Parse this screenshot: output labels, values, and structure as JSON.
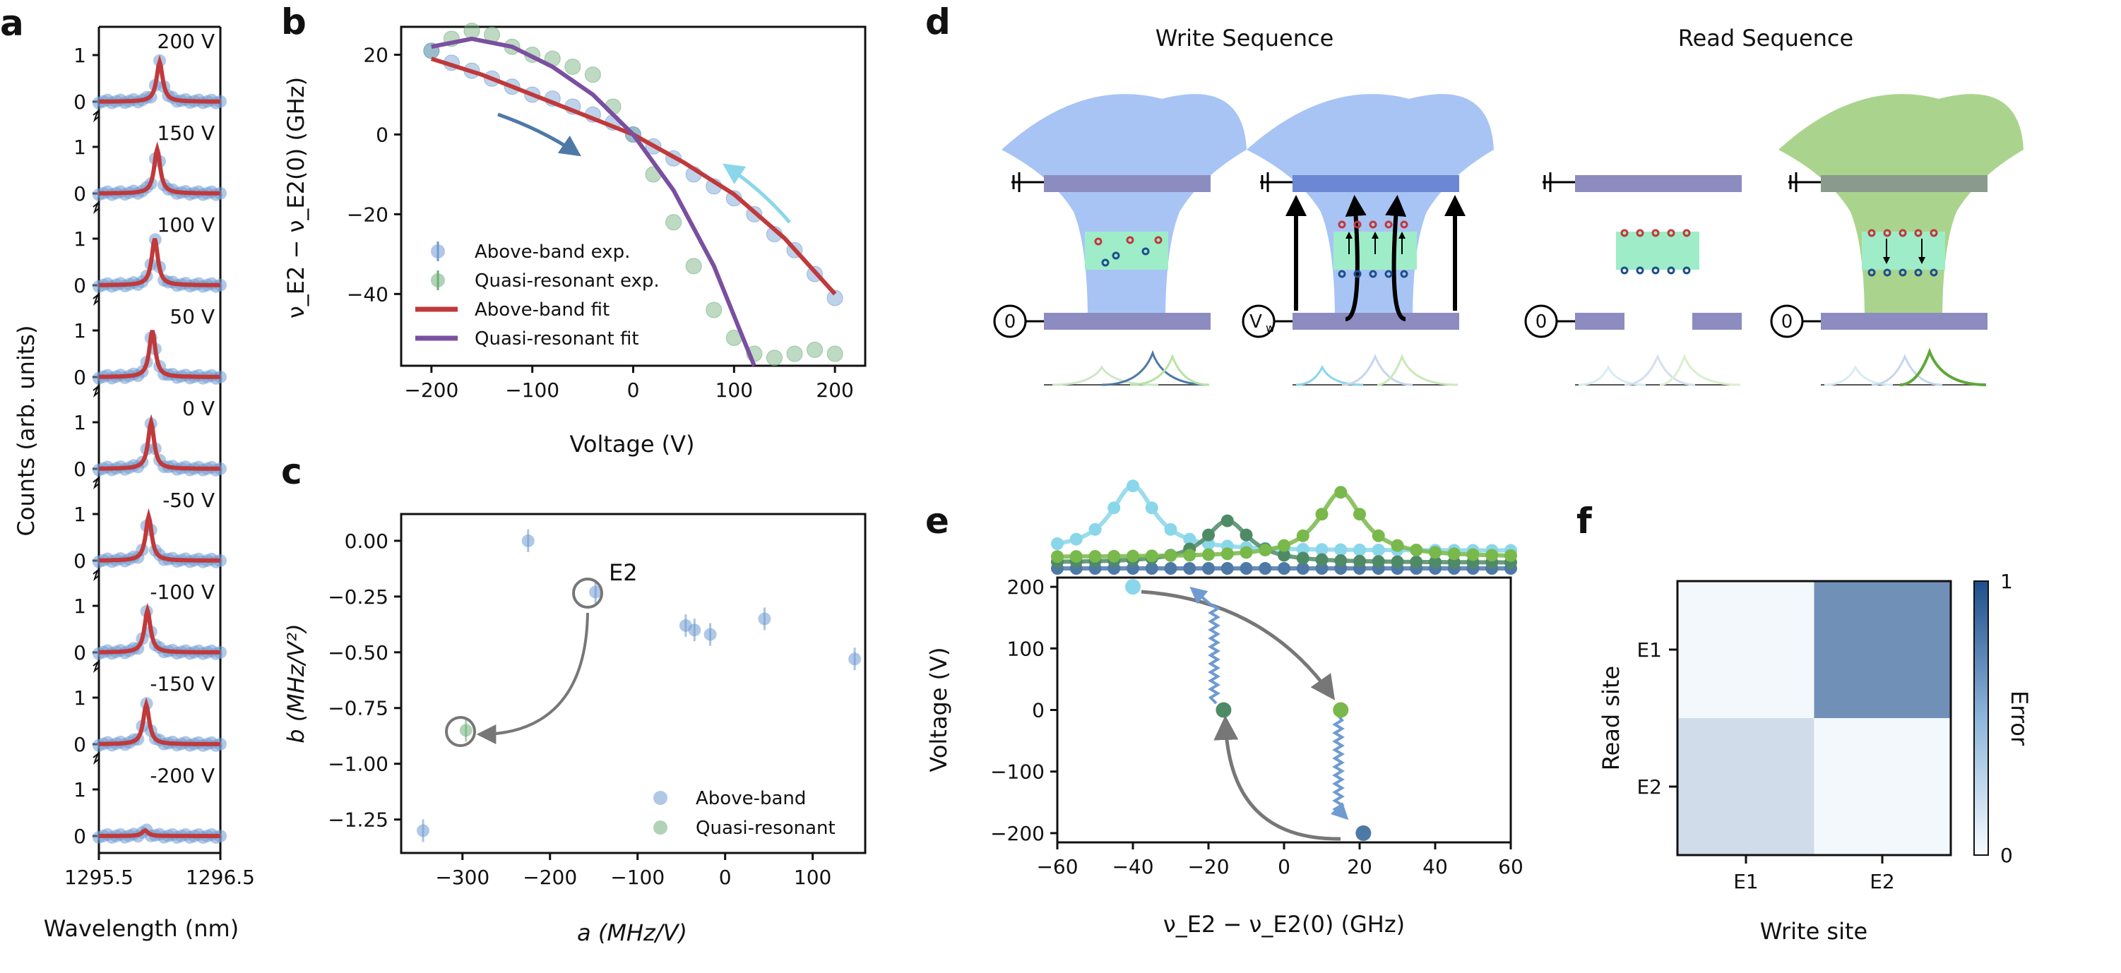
{
  "panel_labels": {
    "a": "a",
    "b": "b",
    "c": "c",
    "d": "d",
    "e": "e",
    "f": "f"
  },
  "colors": {
    "blue": "#6f9bd1",
    "red": "#c0393b",
    "green": "#6fae7a",
    "purple": "#7b4fa0",
    "cyan": "#8ad6ea",
    "teal": "#4f8a66",
    "lime": "#79b84a",
    "steel": "#4e79a7"
  },
  "chart_data": [
    {
      "panel": "a",
      "type": "line",
      "title": "",
      "xlabel": "Wavelength (nm)",
      "ylabel": "Counts (arb. units)",
      "xlim": [
        1295.5,
        1296.5
      ],
      "xticks": [
        "1295.5",
        "1296.5"
      ],
      "yticks": [
        "0",
        "1"
      ],
      "series": [
        {
          "name": "200 V",
          "center": 1296.0,
          "amplitude": 0.85
        },
        {
          "name": "150 V",
          "center": 1295.98,
          "amplitude": 0.95
        },
        {
          "name": "100 V",
          "center": 1295.96,
          "amplitude": 1.0
        },
        {
          "name": "50 V",
          "center": 1295.94,
          "amplitude": 1.0
        },
        {
          "name": "0 V",
          "center": 1295.93,
          "amplitude": 1.0
        },
        {
          "name": "-50 V",
          "center": 1295.91,
          "amplitude": 0.95
        },
        {
          "name": "-100 V",
          "center": 1295.9,
          "amplitude": 0.9
        },
        {
          "name": "-150 V",
          "center": 1295.89,
          "amplitude": 0.85
        },
        {
          "name": "-200 V",
          "center": 1295.88,
          "amplitude": 0.12
        }
      ]
    },
    {
      "panel": "b",
      "type": "scatter",
      "xlabel": "Voltage (V)",
      "ylabel": "ν_E2 − ν_E2(0) (GHz)",
      "xlim": [
        -230,
        230
      ],
      "ylim": [
        -58,
        27
      ],
      "xticks": [
        "−200",
        "−100",
        "0",
        "100",
        "200"
      ],
      "yticks": [
        "20",
        "0",
        "−20",
        "−40"
      ],
      "series": [
        {
          "name": "Above-band exp.",
          "x": [
            -200,
            -180,
            -160,
            -140,
            -120,
            -100,
            -80,
            -60,
            -40,
            -20,
            0,
            20,
            40,
            60,
            80,
            100,
            120,
            140,
            160,
            180,
            200
          ],
          "y": [
            21,
            18,
            16,
            14,
            12,
            10,
            9,
            7,
            5,
            3,
            0,
            -3,
            -6,
            -10,
            -13,
            -16,
            -20,
            -25,
            -29,
            -35,
            -41
          ]
        },
        {
          "name": "Quasi-resonant exp.",
          "x": [
            -200,
            -180,
            -160,
            -140,
            -120,
            -100,
            -80,
            -60,
            -40,
            -20,
            0,
            20,
            40,
            60,
            80,
            100,
            120,
            140,
            160,
            180,
            200
          ],
          "y": [
            21,
            24,
            26,
            25,
            22,
            20,
            19,
            17,
            15,
            7,
            0,
            -10,
            -22,
            -33,
            -44,
            -51,
            -55,
            -56,
            -55,
            -54,
            -55
          ]
        },
        {
          "name": "Above-band fit",
          "x": [
            -200,
            -150,
            -100,
            -50,
            0,
            50,
            100,
            150,
            200
          ],
          "y": [
            19,
            15,
            10,
            5,
            0,
            -7,
            -15,
            -26,
            -40
          ]
        },
        {
          "name": "Quasi-resonant fit",
          "x": [
            -200,
            -160,
            -120,
            -80,
            -40,
            0,
            40,
            80,
            120
          ],
          "y": [
            22,
            24,
            22,
            17,
            10,
            0,
            -14,
            -33,
            -58
          ]
        }
      ]
    },
    {
      "panel": "c",
      "type": "scatter",
      "xlabel": "a (MHz/V)",
      "ylabel": "b (MHz/V²)",
      "xlim": [
        -370,
        160
      ],
      "ylim": [
        -1.4,
        0.12
      ],
      "xticks": [
        "−300",
        "−200",
        "−100",
        "0",
        "100"
      ],
      "yticks": [
        "0.00",
        "−0.25",
        "−0.50",
        "−0.75",
        "−1.00",
        "−1.25"
      ],
      "annotation": "E2",
      "series": [
        {
          "name": "Above-band",
          "x": [
            -225,
            -148,
            -45,
            -35,
            -17,
            45,
            148,
            -345
          ],
          "y": [
            0.0,
            -0.23,
            -0.38,
            -0.4,
            -0.42,
            -0.35,
            -0.53,
            -1.3
          ]
        },
        {
          "name": "Quasi-resonant",
          "x": [
            -296
          ],
          "y": [
            -0.85
          ]
        }
      ]
    },
    {
      "panel": "e",
      "type": "scatter",
      "xlabel": "ν_E2 − ν_E2(0) (GHz)",
      "ylabel": "Voltage (V)",
      "xlim": [
        -60,
        60
      ],
      "ylim": [
        -215,
        215
      ],
      "xticks": [
        "−60",
        "−40",
        "−20",
        "0",
        "20",
        "40",
        "60"
      ],
      "yticks": [
        "200",
        "100",
        "0",
        "−100",
        "−200"
      ],
      "points": [
        {
          "name": "p-light-blue",
          "x": -40,
          "y": 200
        },
        {
          "name": "p-dark-green",
          "x": -16,
          "y": 0
        },
        {
          "name": "p-lime",
          "x": 15,
          "y": 0
        },
        {
          "name": "p-steel",
          "x": 21,
          "y": -200
        }
      ],
      "spectra_peaks": [
        -40,
        -15,
        15
      ]
    },
    {
      "panel": "f",
      "type": "heatmap",
      "xlabel": "Write site",
      "ylabel": "Read site",
      "x_categories": [
        "E1",
        "E2"
      ],
      "y_categories": [
        "E1",
        "E2"
      ],
      "values": [
        [
          0.02,
          0.62
        ],
        [
          0.18,
          0.02
        ]
      ],
      "colorbar": {
        "label": "Error",
        "min": "0",
        "max": "1"
      }
    }
  ],
  "panel_d": {
    "write_title": "Write Sequence",
    "read_title": "Read Sequence",
    "sources": [
      "0",
      "V",
      "0",
      "0"
    ],
    "source_sub": "w"
  }
}
